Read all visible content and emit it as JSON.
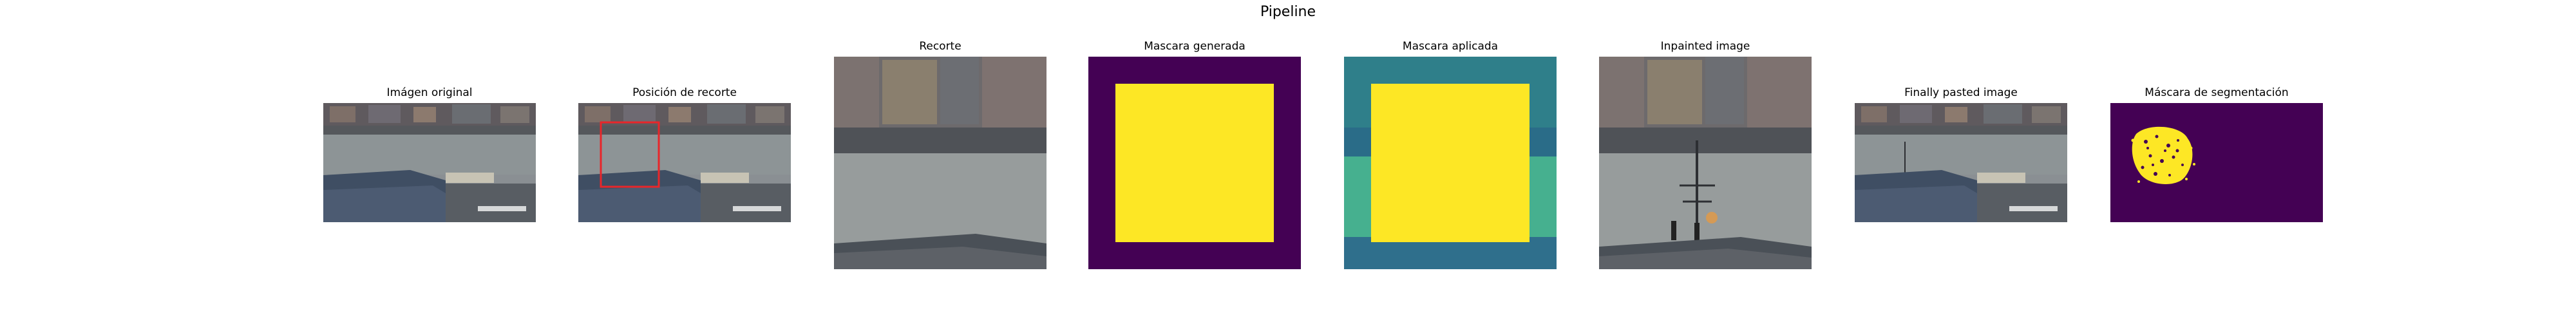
{
  "figure": {
    "title": "Pipeline",
    "panels": [
      {
        "title": "Imágen original",
        "content": "harbor photo"
      },
      {
        "title": "Posición de recorte",
        "content": "harbor photo with red crop rectangle"
      },
      {
        "title": "Recorte",
        "content": "cropped harbor photo"
      },
      {
        "title": "Mascara generada",
        "content": "yellow square mask on purple background"
      },
      {
        "title": "Mascara aplicada",
        "content": "yellow square mask on teal/green crop"
      },
      {
        "title": "Inpainted image",
        "content": "crop with inpainted antenna and figures"
      },
      {
        "title": "Finally pasted image",
        "content": "harbor photo with pasted object"
      },
      {
        "title": "Máscara de segmentación",
        "content": "yellow speckled blob on purple background"
      }
    ]
  },
  "colors": {
    "mask_yellow": "#fde725",
    "mask_purple": "#440154",
    "mask_teal": "#3aa39a",
    "crop_rect": "#e8262a"
  }
}
